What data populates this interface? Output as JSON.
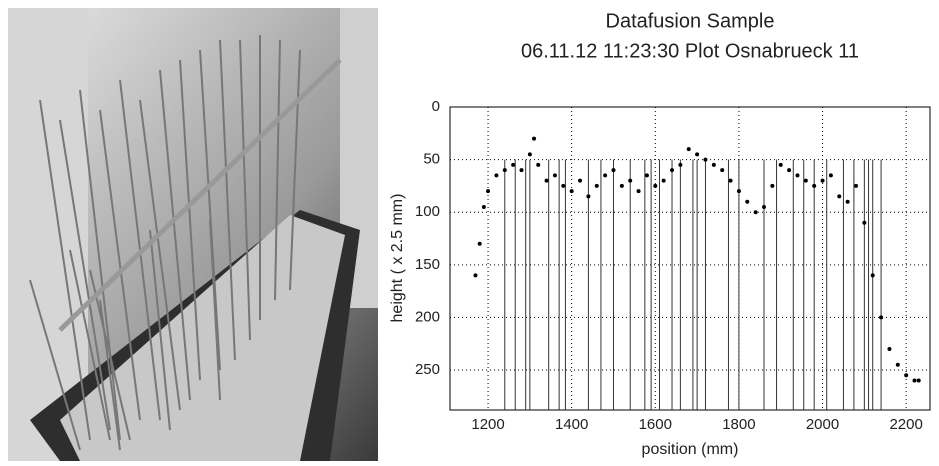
{
  "chart_data": {
    "type": "scatter",
    "title": "Datafusion Sample",
    "subtitle": "06.11.12 11:23:30 Plot Osnabrueck 11",
    "x_label": "position (mm)",
    "y_label": "height ( x 2.5 mm)",
    "xlim": [
      1109,
      2257
    ],
    "ylim": [
      0,
      288
    ],
    "y_inverted": true,
    "xticks": [
      1200,
      1400,
      1600,
      1800,
      2000,
      2200
    ],
    "yticks": [
      0,
      50,
      100,
      150,
      200,
      250
    ],
    "grid": true,
    "color": "#000000",
    "x": [
      1170,
      1180,
      1190,
      1200,
      1220,
      1240,
      1260,
      1280,
      1300,
      1310,
      1320,
      1340,
      1360,
      1380,
      1400,
      1420,
      1440,
      1460,
      1480,
      1500,
      1520,
      1540,
      1560,
      1580,
      1600,
      1620,
      1640,
      1660,
      1680,
      1700,
      1720,
      1740,
      1760,
      1780,
      1800,
      1820,
      1840,
      1860,
      1880,
      1900,
      1920,
      1940,
      1960,
      1980,
      2000,
      2020,
      2040,
      2060,
      2080,
      2100,
      2120,
      2140,
      2160,
      2180,
      2200,
      2220,
      2230
    ],
    "values": [
      160,
      130,
      95,
      80,
      65,
      60,
      55,
      60,
      45,
      30,
      55,
      70,
      65,
      75,
      80,
      70,
      85,
      75,
      65,
      60,
      75,
      70,
      80,
      65,
      75,
      70,
      60,
      55,
      40,
      45,
      50,
      55,
      60,
      70,
      80,
      90,
      100,
      95,
      75,
      55,
      60,
      65,
      70,
      75,
      70,
      65,
      85,
      90,
      75,
      110,
      160,
      200,
      230,
      245,
      255,
      260,
      260
    ],
    "stem_x": [
      1240,
      1265,
      1290,
      1300,
      1345,
      1370,
      1385,
      1440,
      1470,
      1500,
      1540,
      1575,
      1590,
      1610,
      1640,
      1660,
      1690,
      1700,
      1720,
      1775,
      1800,
      1860,
      1890,
      1930,
      1955,
      1980,
      2010,
      2050,
      2075,
      2100,
      2110,
      2120,
      2140
    ],
    "stem_top": [
      50,
      50,
      50,
      50,
      50,
      50,
      50,
      50,
      50,
      50,
      50,
      50,
      50,
      50,
      50,
      50,
      50,
      50,
      50,
      50,
      50,
      50,
      50,
      50,
      50,
      50,
      50,
      50,
      50,
      50,
      50,
      50,
      50
    ]
  }
}
